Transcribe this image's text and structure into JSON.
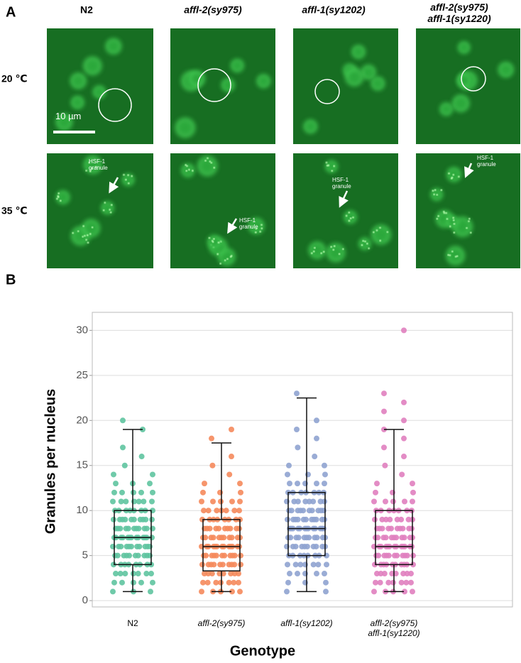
{
  "panel_a": {
    "label": "A",
    "columns": [
      "N2",
      "affl-2(sy975)",
      "affl-1(sy1202)",
      "affl-2(sy975)\naffl-1(sy1220)"
    ],
    "rows": [
      "20 ℃",
      "35 ℃"
    ],
    "scale_bar": "10 µm",
    "annotations": [
      "HSF-1\ngranule",
      "HSF-1\ngranule",
      "HSF-1\ngranule",
      "HSF-1\ngranule"
    ]
  },
  "panel_b": {
    "label": "B"
  },
  "chart_data": {
    "type": "box",
    "xlabel": "Genotype",
    "ylabel": "Granules per nucleus",
    "categories": [
      "N2",
      "affl-2(sy975)",
      "affl-1(sy1202)",
      "affl-2(sy975)\naffl-1(sy1220)"
    ],
    "boxes": [
      {
        "color": "#5fc4a0",
        "whisker_low": 1,
        "q1": 4,
        "median": 7,
        "q3": 10,
        "whisker_high": 19,
        "points": [
          1,
          2,
          3,
          4,
          5,
          6,
          7,
          8,
          9,
          10,
          11,
          12,
          13,
          14,
          15,
          16,
          17,
          19,
          20
        ]
      },
      {
        "color": "#f58a5c",
        "whisker_low": 1,
        "q1": 3.3,
        "median": 6,
        "q3": 9,
        "whisker_high": 17.5,
        "points": [
          1,
          2,
          3,
          4,
          5,
          6,
          7,
          8,
          9,
          10,
          11,
          12,
          13,
          14,
          15,
          16,
          18,
          19
        ]
      },
      {
        "color": "#8fa3d0",
        "whisker_low": 1,
        "q1": 5,
        "median": 8,
        "q3": 12,
        "whisker_high": 22.5,
        "points": [
          1,
          2,
          3,
          4,
          5,
          6,
          7,
          8,
          9,
          10,
          11,
          12,
          13,
          14,
          15,
          16,
          17,
          18,
          19,
          20,
          23
        ]
      },
      {
        "color": "#e07fbf",
        "whisker_low": 1,
        "q1": 4,
        "median": 6,
        "q3": 10,
        "whisker_high": 19,
        "points": [
          1,
          2,
          3,
          4,
          5,
          6,
          7,
          8,
          9,
          10,
          11,
          12,
          13,
          14,
          15,
          16,
          17,
          18,
          19,
          20,
          21,
          22,
          23,
          30
        ]
      }
    ],
    "ylim": [
      -0.7,
      32
    ],
    "yticks": [
      0,
      5,
      10,
      15,
      20,
      25,
      30
    ],
    "grid": true
  }
}
